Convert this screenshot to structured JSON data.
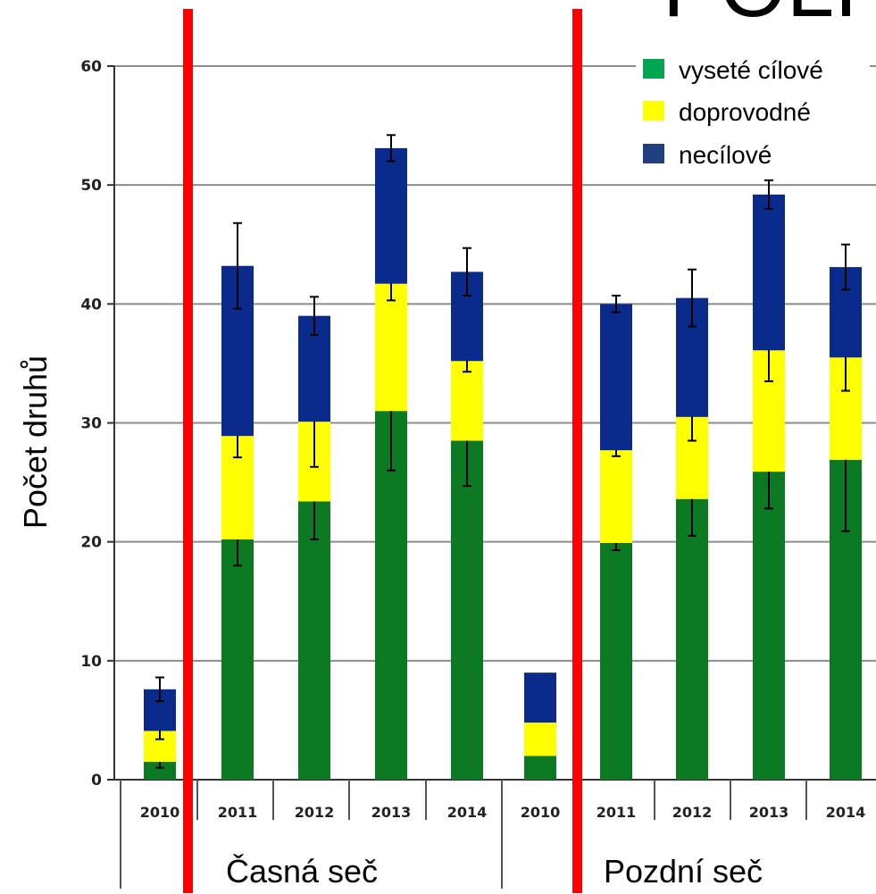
{
  "chart_data": {
    "type": "bar",
    "stacked": true,
    "title": "",
    "corner_title_fragment": "POLI",
    "ylabel": "Počet druhů",
    "ylim": [
      0,
      60
    ],
    "yticks": [
      0,
      10,
      20,
      30,
      40,
      50,
      60
    ],
    "grid": true,
    "legend_position": "top-right",
    "categories": [
      "2010",
      "2011",
      "2012",
      "2013",
      "2014",
      "2010",
      "2011",
      "2012",
      "2013",
      "2014"
    ],
    "groups": [
      {
        "label": "Časná seč",
        "start": 0,
        "end": 4
      },
      {
        "label": "Pozdní seč",
        "start": 5,
        "end": 9
      }
    ],
    "series": [
      {
        "name": "vyseté cílové",
        "color": "#0b7a23",
        "values": [
          1.5,
          20.2,
          23.4,
          31.0,
          28.5,
          2.0,
          19.9,
          23.6,
          25.9,
          26.9
        ],
        "errors": [
          0.5,
          2.2,
          3.2,
          5.0,
          3.8,
          0.0,
          0.6,
          3.1,
          3.1,
          6.0
        ]
      },
      {
        "name": "doprovodné",
        "color": "#ffff00",
        "values": [
          2.6,
          8.7,
          6.7,
          10.7,
          6.7,
          2.8,
          7.8,
          6.9,
          10.2,
          8.6
        ],
        "errors": [
          0.7,
          1.8,
          3.8,
          1.4,
          0.9,
          0.0,
          0.5,
          2.0,
          2.6,
          2.8
        ]
      },
      {
        "name": "necílové",
        "color": "#0a2a8c",
        "values": [
          3.5,
          14.3,
          8.9,
          11.4,
          7.5,
          4.2,
          12.3,
          10.0,
          13.1,
          7.6
        ],
        "errors": [
          1.0,
          3.6,
          1.6,
          1.1,
          2.0,
          0.0,
          0.7,
          2.4,
          1.2,
          1.9
        ]
      }
    ],
    "legend_swatch_colors": [
      "#00a651",
      "#ffff00",
      "#1f3f80"
    ],
    "divider_color": "#ff0000"
  }
}
